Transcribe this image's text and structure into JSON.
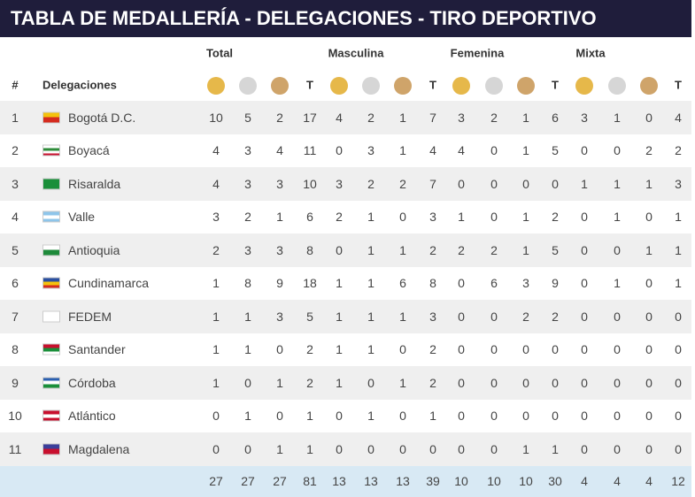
{
  "header": {
    "title": "TABLA DE MEDALLERÍA - DELEGACIONES - TIRO DEPORTIVO"
  },
  "table": {
    "groups": [
      "Total",
      "Masculina",
      "Femenina",
      "Mixta"
    ],
    "columns": {
      "rank": "#",
      "delegation": "Delegaciones",
      "t": "T"
    },
    "rows": [
      [
        1,
        "Bogotá D.C.",
        10,
        5,
        2,
        17,
        4,
        2,
        1,
        7,
        3,
        2,
        1,
        6,
        3,
        1,
        0,
        4
      ],
      [
        2,
        "Boyacá",
        4,
        3,
        4,
        11,
        0,
        3,
        1,
        4,
        4,
        0,
        1,
        5,
        0,
        0,
        2,
        2
      ],
      [
        3,
        "Risaralda",
        4,
        3,
        3,
        10,
        3,
        2,
        2,
        7,
        0,
        0,
        0,
        0,
        1,
        1,
        1,
        3
      ],
      [
        4,
        "Valle",
        3,
        2,
        1,
        6,
        2,
        1,
        0,
        3,
        1,
        0,
        1,
        2,
        0,
        1,
        0,
        1
      ],
      [
        5,
        "Antioquia",
        2,
        3,
        3,
        8,
        0,
        1,
        1,
        2,
        2,
        2,
        1,
        5,
        0,
        0,
        1,
        1
      ],
      [
        6,
        "Cundinamarca",
        1,
        8,
        9,
        18,
        1,
        1,
        6,
        8,
        0,
        6,
        3,
        9,
        0,
        1,
        0,
        1
      ],
      [
        7,
        "FEDEM",
        1,
        1,
        3,
        5,
        1,
        1,
        1,
        3,
        0,
        0,
        2,
        2,
        0,
        0,
        0,
        0
      ],
      [
        8,
        "Santander",
        1,
        1,
        0,
        2,
        1,
        1,
        0,
        2,
        0,
        0,
        0,
        0,
        0,
        0,
        0,
        0
      ],
      [
        9,
        "Córdoba",
        1,
        0,
        1,
        2,
        1,
        0,
        1,
        2,
        0,
        0,
        0,
        0,
        0,
        0,
        0,
        0
      ],
      [
        10,
        "Atlántico",
        0,
        1,
        0,
        1,
        0,
        1,
        0,
        1,
        0,
        0,
        0,
        0,
        0,
        0,
        0,
        0
      ],
      [
        11,
        "Magdalena",
        0,
        0,
        1,
        1,
        0,
        0,
        0,
        0,
        0,
        0,
        1,
        1,
        0,
        0,
        0,
        0
      ]
    ],
    "totals": [
      27,
      27,
      27,
      81,
      13,
      13,
      13,
      39,
      10,
      10,
      10,
      30,
      4,
      4,
      4,
      12
    ]
  }
}
